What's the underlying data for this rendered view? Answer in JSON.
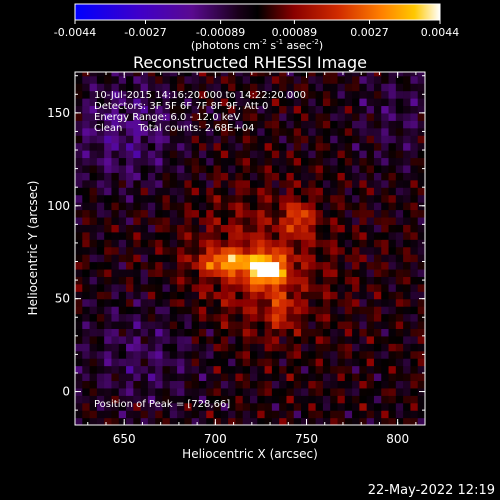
{
  "colorbar": {
    "ticks": [
      "-0.0044",
      "-0.0027",
      "-0.00089",
      "0.00089",
      "0.0027",
      "0.0044"
    ],
    "tick_values": [
      -0.0044,
      -0.0027,
      -0.00089,
      0.00089,
      0.0027,
      0.0044
    ],
    "range": [
      -0.0044,
      0.0044
    ],
    "units_main": "(photons cm",
    "units_sup1": "-2",
    "units_mid1": " s",
    "units_sup2": "-1",
    "units_mid2": " asec",
    "units_sup3": "-2",
    "units_end": ")",
    "colormap": [
      "#0000ff",
      "#4000d0",
      "#6a0a9a",
      "#000000",
      "#8a0000",
      "#d23000",
      "#ff7a00",
      "#ffc200",
      "#ffffff"
    ]
  },
  "chart_data": {
    "type": "heatmap",
    "title": "Reconstructed RHESSI Image",
    "xlabel": "Heliocentric X (arcsec)",
    "ylabel": "Heliocentric Y (arcsec)",
    "xlim": [
      623,
      815
    ],
    "ylim": [
      -18,
      172
    ],
    "x_ticks": [
      650,
      700,
      750,
      800
    ],
    "y_ticks": [
      0,
      50,
      100,
      150
    ],
    "info_lines": [
      "10-Jul-2015 14:16:20.000 to 14:22:20.000",
      "Detectors: 3F 5F 6F 7F 8F 9F, Att 0",
      "Energy Range: 6.0 - 12.0 keV",
      "Clean     Total counts: 2.68E+04"
    ],
    "peak_label": "Position of Peak = [728,66]",
    "peak": [
      728,
      66
    ]
  },
  "footer": {
    "timestamp": "22-May-2022 12:19"
  }
}
